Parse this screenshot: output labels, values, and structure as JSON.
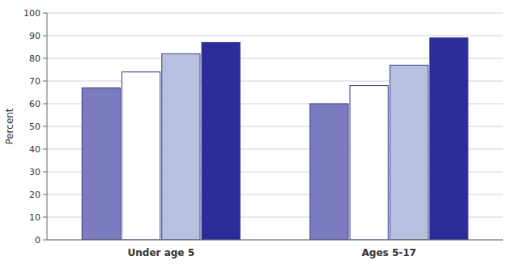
{
  "chart_data": {
    "type": "bar",
    "categories": [
      "Under age 5",
      "Ages 5-17"
    ],
    "series": [
      {
        "color": "#7b7bbf",
        "values": [
          67,
          60
        ]
      },
      {
        "color": "#ffffff",
        "values": [
          74,
          68
        ]
      },
      {
        "color": "#b8c0e0",
        "values": [
          82,
          77
        ]
      },
      {
        "color": "#2b2b99",
        "values": [
          87,
          89
        ]
      }
    ],
    "ylabel": "Percent",
    "ylim": [
      0,
      100
    ],
    "yticks": [
      0,
      10,
      20,
      30,
      40,
      50,
      60,
      70,
      80,
      90,
      100
    ],
    "grid": true
  }
}
